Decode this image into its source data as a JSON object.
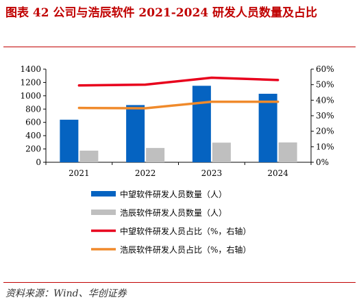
{
  "page": {
    "title": "图表  42    公司与浩辰软件 2021-2024 研发人员数量及占比",
    "source": "资料来源：Wind、华创证券"
  },
  "chart_data": {
    "type": "bar",
    "categories": [
      "2021",
      "2022",
      "2023",
      "2024"
    ],
    "series": [
      {
        "name": "中望软件研发人员数量（人）",
        "kind": "bar",
        "axis": "left",
        "color": "#0563C1",
        "values": [
          640,
          860,
          1150,
          1030
        ]
      },
      {
        "name": "浩辰软件研发人员数量（人）",
        "kind": "bar",
        "axis": "left",
        "color": "#BFBFBF",
        "values": [
          175,
          215,
          295,
          298
        ]
      },
      {
        "name": "中望软件研发人员占比（%，右轴）",
        "kind": "line",
        "axis": "right",
        "color": "#E8001C",
        "values": [
          49.5,
          50,
          54.5,
          53
        ]
      },
      {
        "name": "浩辰软件研发人员占比（%，右轴）",
        "kind": "line",
        "axis": "right",
        "color": "#F08A2B",
        "values": [
          35,
          34.8,
          39,
          39
        ]
      }
    ],
    "y_left": {
      "min": 0,
      "max": 1400,
      "ticks": [
        "0",
        "200",
        "400",
        "600",
        "800",
        "1000",
        "1200",
        "1400"
      ]
    },
    "y_right": {
      "min": 0,
      "max": 60,
      "ticks": [
        "0%",
        "10%",
        "20%",
        "30%",
        "40%",
        "50%",
        "60%"
      ]
    },
    "legend_position": "bottom",
    "grid": false
  }
}
